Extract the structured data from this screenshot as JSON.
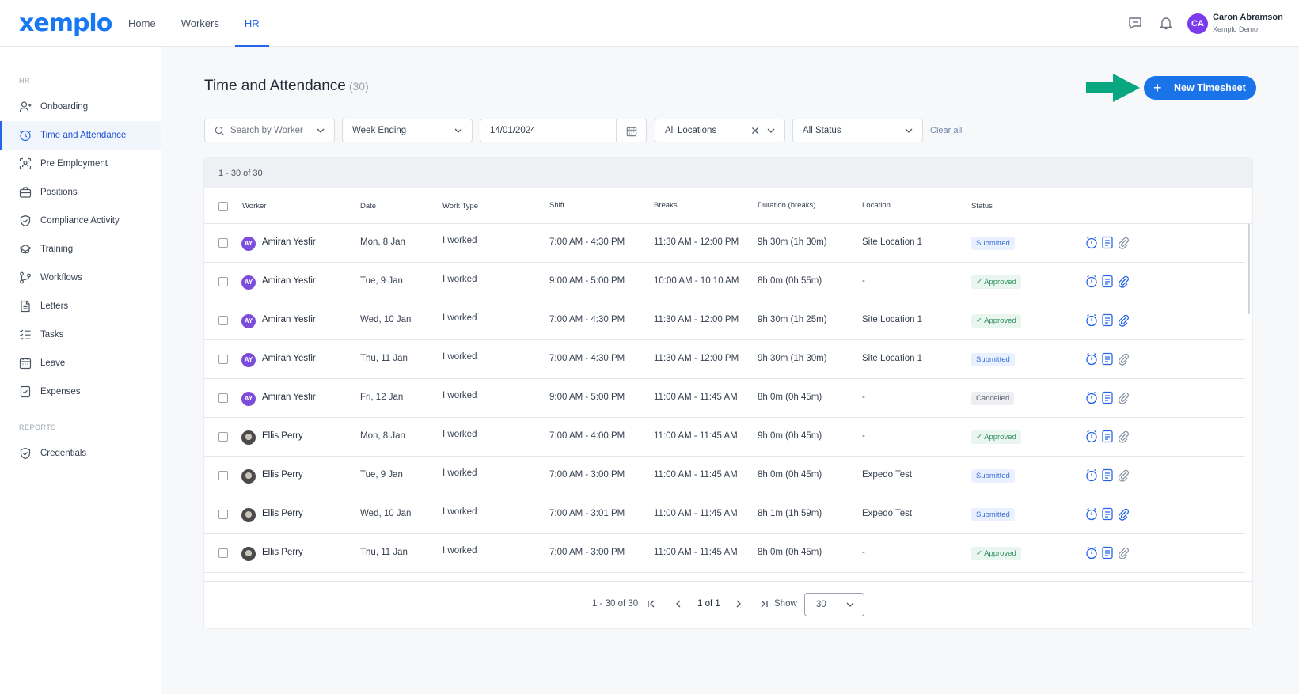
{
  "app": {
    "logo": "xemplo",
    "nav": [
      {
        "label": "Home",
        "active": false
      },
      {
        "label": "Workers",
        "active": false
      },
      {
        "label": "HR",
        "active": true
      }
    ],
    "user": {
      "initials": "CA",
      "name": "Caron Abramson",
      "org": "Xemplo Demo"
    },
    "icons": [
      "chat-icon",
      "bell-icon"
    ]
  },
  "sidebar": {
    "section_hr": "HR",
    "items": [
      {
        "label": "Onboarding",
        "icon": "user-plus-icon",
        "active": false
      },
      {
        "label": "Time and Attendance",
        "icon": "clock-icon",
        "active": true
      },
      {
        "label": "Pre Employment",
        "icon": "user-scan-icon",
        "active": false
      },
      {
        "label": "Positions",
        "icon": "briefcase-icon",
        "active": false
      },
      {
        "label": "Compliance Activity",
        "icon": "shield-check-icon",
        "active": false
      },
      {
        "label": "Training",
        "icon": "graduation-cap-icon",
        "active": false
      },
      {
        "label": "Workflows",
        "icon": "workflow-icon",
        "active": false
      },
      {
        "label": "Letters",
        "icon": "document-icon",
        "active": false
      },
      {
        "label": "Tasks",
        "icon": "checklist-icon",
        "active": false
      },
      {
        "label": "Leave",
        "icon": "calendar-icon",
        "active": false
      },
      {
        "label": "Expenses",
        "icon": "receipt-icon",
        "active": false
      }
    ],
    "section_reports": "REPORTS",
    "report_items": [
      {
        "label": "Credentials",
        "icon": "shield-check-icon",
        "active": false
      }
    ]
  },
  "main": {
    "title": "Time and Attendance",
    "count": "(30)",
    "new_button": "New Timesheet",
    "filters": {
      "search_placeholder": "Search by Worker",
      "week_ending": "Week Ending",
      "date": "14/01/2024",
      "location": "All Locations",
      "status": "All Status",
      "clear_all": "Clear all"
    },
    "range": "1 - 30 of 30",
    "columns": {
      "worker": "Worker",
      "date": "Date",
      "work_type": "Work Type",
      "shift": "Shift",
      "breaks": "Breaks",
      "duration": "Duration (breaks)",
      "location": "Location",
      "status": "Status"
    },
    "rows": [
      {
        "initials": "AY",
        "worker": "Amiran Yesfir",
        "date": "Mon, 8 Jan",
        "work_type": "I worked",
        "shift": "7:00 AM - 4:30 PM",
        "breaks": "11:30 AM - 12:00 PM",
        "duration": "9h 30m (1h 30m)",
        "location": "Site Location 1",
        "status": "Submitted"
      },
      {
        "initials": "AY",
        "worker": "Amiran Yesfir",
        "date": "Tue, 9 Jan",
        "work_type": "I worked",
        "shift": "9:00 AM - 5:00 PM",
        "breaks": "10:00 AM - 10:10 AM",
        "duration": "8h 0m (0h 55m)",
        "location": "-",
        "status": "Approved"
      },
      {
        "initials": "AY",
        "worker": "Amiran Yesfir",
        "date": "Wed, 10 Jan",
        "work_type": "I worked",
        "shift": "7:00 AM - 4:30 PM",
        "breaks": "11:30 AM - 12:00 PM",
        "duration": "9h 30m (1h 25m)",
        "location": "Site Location 1",
        "status": "Approved"
      },
      {
        "initials": "AY",
        "worker": "Amiran Yesfir",
        "date": "Thu, 11 Jan",
        "work_type": "I worked",
        "shift": "7:00 AM - 4:30 PM",
        "breaks": "11:30 AM - 12:00 PM",
        "duration": "9h 30m (1h 30m)",
        "location": "Site Location 1",
        "status": "Submitted"
      },
      {
        "initials": "AY",
        "worker": "Amiran Yesfir",
        "date": "Fri, 12 Jan",
        "work_type": "I worked",
        "shift": "9:00 AM - 5:00 PM",
        "breaks": "11:00 AM - 11:45 AM",
        "duration": "8h 0m (0h 45m)",
        "location": "-",
        "status": "Cancelled"
      },
      {
        "initials": "",
        "worker": "Ellis Perry",
        "date": "Mon, 8 Jan",
        "work_type": "I worked",
        "shift": "7:00 AM - 4:00 PM",
        "breaks": "11:00 AM - 11:45 AM",
        "duration": "9h 0m (0h 45m)",
        "location": "-",
        "status": "Approved"
      },
      {
        "initials": "",
        "worker": "Ellis Perry",
        "date": "Tue, 9 Jan",
        "work_type": "I worked",
        "shift": "7:00 AM - 3:00 PM",
        "breaks": "11:00 AM - 11:45 AM",
        "duration": "8h 0m (0h 45m)",
        "location": "Expedo Test",
        "status": "Submitted"
      },
      {
        "initials": "",
        "worker": "Ellis Perry",
        "date": "Wed, 10 Jan",
        "work_type": "I worked",
        "shift": "7:00 AM - 3:01 PM",
        "breaks": "11:00 AM - 11:45 AM",
        "duration": "8h 1m (1h 59m)",
        "location": "Expedo Test",
        "status": "Submitted"
      },
      {
        "initials": "",
        "worker": "Ellis Perry",
        "date": "Thu, 11 Jan",
        "work_type": "I worked",
        "shift": "7:00 AM - 3:00 PM",
        "breaks": "11:00 AM - 11:45 AM",
        "duration": "8h 0m (0h 45m)",
        "location": "-",
        "status": "Approved"
      }
    ],
    "pager": {
      "range": "1 - 30 of 30",
      "page": "1 of 1",
      "show_label": "Show",
      "page_size": "30"
    }
  },
  "colors": {
    "accent": "#1a73e8",
    "arrow": "#0aa680",
    "avatar": "#7c4ddb"
  }
}
